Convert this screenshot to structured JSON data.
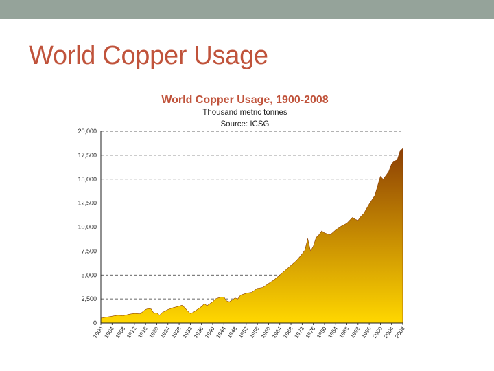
{
  "slide": {
    "title": "World Copper Usage"
  },
  "colors": {
    "top_band": "#95a39a",
    "slide_title": "#c0533b",
    "chart_title": "#c0533b",
    "area_top": "#8c3f05",
    "area_bottom": "#ffd700"
  },
  "chart_data": {
    "type": "area",
    "title": "World Copper Usage, 1900-2008",
    "subtitle": "Thousand metric tonnes",
    "source": "Source: ICSG",
    "xlabel": "",
    "ylabel": "",
    "xlim": [
      1900,
      2008
    ],
    "ylim": [
      0,
      20000
    ],
    "yticks": [
      0,
      2500,
      5000,
      7500,
      10000,
      12500,
      15000,
      17500,
      20000
    ],
    "ytick_labels": [
      "0",
      "2,500",
      "5,000",
      "7,500",
      "10,000",
      "12,500",
      "15,000",
      "17,500",
      "20,000"
    ],
    "xticks": [
      1900,
      1904,
      1908,
      1912,
      1916,
      1920,
      1924,
      1928,
      1932,
      1936,
      1940,
      1944,
      1948,
      1952,
      1956,
      1960,
      1964,
      1968,
      1972,
      1976,
      1980,
      1984,
      1988,
      1992,
      1996,
      2000,
      2004,
      2008
    ],
    "grid": "horizontal-dashed",
    "series": [
      {
        "x": [
          1900,
          1902,
          1904,
          1906,
          1908,
          1910,
          1912,
          1914,
          1916,
          1917,
          1918,
          1919,
          1920,
          1921,
          1922,
          1924,
          1926,
          1928,
          1929,
          1930,
          1931,
          1932,
          1933,
          1934,
          1936,
          1937,
          1938,
          1940,
          1941,
          1942,
          1943,
          1944,
          1945,
          1946,
          1948,
          1949,
          1950,
          1952,
          1954,
          1956,
          1958,
          1960,
          1962,
          1964,
          1966,
          1968,
          1970,
          1972,
          1973,
          1974,
          1975,
          1976,
          1977,
          1978,
          1979,
          1980,
          1982,
          1984,
          1986,
          1988,
          1990,
          1991,
          1992,
          1993,
          1994,
          1996,
          1998,
          2000,
          2001,
          2002,
          2003,
          2004,
          2005,
          2006,
          2007,
          2008
        ],
        "values": [
          500,
          600,
          700,
          800,
          750,
          900,
          1000,
          950,
          1400,
          1500,
          1450,
          1000,
          1050,
          800,
          1100,
          1400,
          1600,
          1750,
          1850,
          1600,
          1250,
          1000,
          1100,
          1300,
          1700,
          2000,
          1800,
          2200,
          2500,
          2600,
          2700,
          2700,
          2300,
          2200,
          2600,
          2500,
          2900,
          3100,
          3200,
          3600,
          3700,
          4100,
          4500,
          5000,
          5500,
          6000,
          6500,
          7200,
          7600,
          8800,
          7500,
          8000,
          8900,
          9200,
          9600,
          9400,
          9200,
          9700,
          10100,
          10400,
          11000,
          10800,
          10700,
          11100,
          11400,
          12400,
          13300,
          15300,
          15000,
          15400,
          15800,
          16600,
          16900,
          17000,
          17900,
          18200
        ]
      }
    ]
  }
}
